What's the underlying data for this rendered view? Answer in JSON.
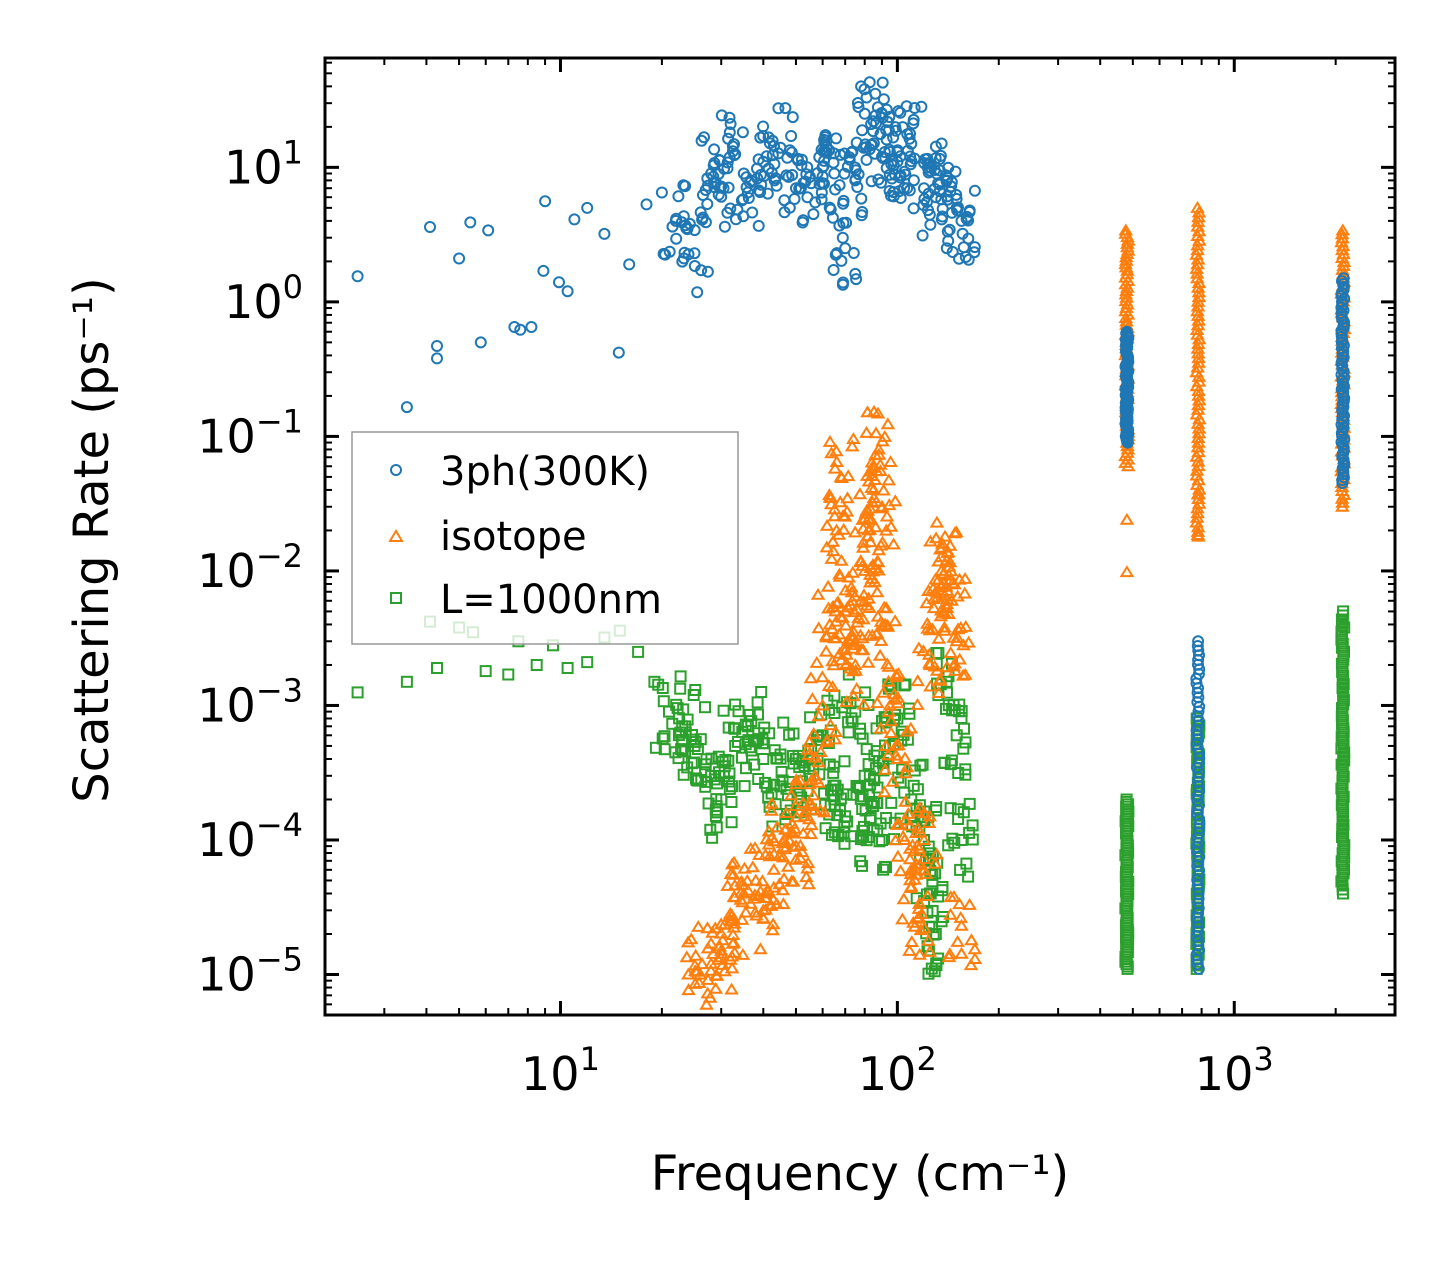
{
  "chart_data": {
    "type": "scatter",
    "xscale": "log",
    "yscale": "log",
    "xlabel": "Frequency (cm⁻¹)",
    "ylabel": "Scattering Rate (ps⁻¹)",
    "xlim": [
      2.0,
      3000
    ],
    "ylim": [
      5e-06,
      65
    ],
    "x_ticks": [
      {
        "base": "10",
        "exp": "1",
        "value": 10
      },
      {
        "base": "10",
        "exp": "2",
        "value": 100
      },
      {
        "base": "10",
        "exp": "3",
        "value": 1000
      }
    ],
    "y_ticks": [
      {
        "base": "10",
        "exp": "1",
        "value": 10
      },
      {
        "base": "10",
        "exp": "0",
        "value": 1
      },
      {
        "base": "10",
        "exp": "−1",
        "value": 0.1
      },
      {
        "base": "10",
        "exp": "−2",
        "value": 0.01
      },
      {
        "base": "10",
        "exp": "−3",
        "value": 0.001
      },
      {
        "base": "10",
        "exp": "−4",
        "value": 0.0001
      },
      {
        "base": "10",
        "exp": "−5",
        "value": 1e-05
      }
    ],
    "legend_position": "center-left",
    "series": [
      {
        "name": "3ph(300K)",
        "marker": "circle",
        "color": "#1f77b4",
        "x": [
          2.5,
          3.5,
          4.1,
          4.3,
          4.3,
          5.0,
          5.4,
          5.8,
          6.1,
          7.3,
          7.6,
          8.2,
          8.9,
          9.0,
          9.9,
          10.5,
          11.0,
          12.0,
          13.5,
          14.9,
          16.0,
          18.0,
          20.0,
          22.0,
          25.0,
          28.0,
          30.0,
          33.0,
          36.0,
          40.0,
          45.0,
          50.0,
          55.0,
          60.0,
          65.0,
          70.0,
          75.0,
          80.0,
          85.0,
          90.0,
          95.0,
          100.0,
          110.0,
          120.0,
          130.0,
          140.0,
          150.0,
          155.0
        ],
        "y": [
          1.55,
          0.165,
          3.6,
          0.38,
          0.47,
          2.1,
          3.9,
          0.5,
          3.4,
          0.65,
          0.62,
          0.65,
          1.7,
          5.6,
          1.4,
          1.2,
          4.1,
          5.0,
          3.2,
          0.42,
          1.9,
          5.3,
          6.5,
          4.0,
          2.3,
          9.0,
          7.2,
          12.5,
          6.5,
          11.0,
          14.0,
          7.0,
          8.5,
          10.0,
          9.0,
          2.5,
          8.0,
          25.0,
          22.0,
          12.0,
          13.0,
          11.0,
          15.0,
          7.0,
          6.0,
          8.0,
          5.0,
          4.0
        ],
        "bands": [
          {
            "x": [
              480,
              480
            ],
            "y": [
              0.09,
              0.6
            ]
          },
          {
            "x": [
              780,
              780
            ],
            "y": [
              1.1e-05,
              0.003
            ]
          },
          {
            "x": [
              2100,
              2100
            ],
            "y": [
              0.045,
              1.5
            ]
          }
        ]
      },
      {
        "name": "isotope",
        "marker": "triangle",
        "color": "#ff7f0e",
        "x": [
          26,
          28,
          30,
          32,
          35,
          38,
          40,
          43,
          46,
          50,
          53,
          57,
          60,
          63,
          66,
          68,
          70,
          72,
          75,
          78,
          80,
          82,
          85,
          88,
          90,
          92,
          95,
          100,
          105,
          110,
          115,
          120,
          125,
          130,
          135,
          140,
          145,
          150,
          155
        ],
        "y": [
          1e-05,
          1.2e-05,
          1.5e-05,
          2.5e-05,
          4e-05,
          5e-05,
          3e-05,
          6e-05,
          0.0001,
          9e-05,
          0.00015,
          0.0003,
          0.001,
          0.004,
          0.02,
          0.05,
          0.005,
          0.003,
          0.002,
          0.006,
          0.01,
          0.02,
          0.04,
          0.08,
          0.03,
          0.004,
          0.001,
          0.0004,
          0.0001,
          4.5e-05,
          2.6e-05,
          0.0001,
          0.002,
          0.007,
          0.01,
          0.012,
          0.006,
          0.003,
          2.3e-05
        ],
        "bands": [
          {
            "x": [
              480,
              480
            ],
            "y": [
              0.06,
              3.4
            ]
          },
          {
            "x": [
              780,
              780
            ],
            "y": [
              0.018,
              5.0
            ]
          },
          {
            "x": [
              2100,
              2100
            ],
            "y": [
              0.03,
              3.4
            ]
          }
        ],
        "outliers": [
          {
            "x": 480,
            "y": 0.0098
          },
          {
            "x": 480,
            "y": 0.024
          },
          {
            "x": 780,
            "y": 0.0185
          },
          {
            "x": 780,
            "y": 0.037
          }
        ]
      },
      {
        "name": "L=1000nm",
        "marker": "square",
        "color": "#2ca02c",
        "x": [
          2.5,
          3.5,
          4.1,
          4.3,
          5.0,
          5.5,
          6.0,
          7.0,
          7.5,
          8.5,
          9.5,
          10.5,
          12.0,
          13.5,
          15.0,
          17.0,
          19.0,
          21.0,
          23.0,
          25.0,
          28.0,
          30.0,
          33.0,
          36.0,
          40.0,
          45.0,
          50.0,
          55.0,
          60.0,
          65.0,
          70.0,
          75.0,
          80.0,
          85.0,
          90.0,
          95.0,
          100.0,
          110.0,
          120.0,
          125.0,
          130.0,
          140.0,
          150.0,
          155.0
        ],
        "y": [
          0.00125,
          0.0015,
          0.0042,
          0.0019,
          0.0038,
          0.0035,
          0.0018,
          0.0017,
          0.003,
          0.002,
          0.0028,
          0.0019,
          0.0021,
          0.0032,
          0.0036,
          0.0025,
          0.0015,
          0.0009,
          0.0007,
          0.0005,
          0.0003,
          0.0002,
          0.0005,
          0.0007,
          0.0004,
          0.00025,
          0.0004,
          0.0003,
          0.0006,
          0.0002,
          0.00015,
          0.0009,
          0.0003,
          0.00012,
          0.0001,
          0.0005,
          0.0008,
          0.0002,
          0.0001,
          4e-05,
          2e-05,
          0.0015,
          0.0006,
          0.0001
        ],
        "bands": [
          {
            "x": [
              480,
              480
            ],
            "y": [
              1.1e-05,
              0.0002
            ]
          },
          {
            "x": [
              780,
              780
            ],
            "y": [
              1.1e-05,
              0.0008
            ]
          },
          {
            "x": [
              2100,
              2100
            ],
            "y": [
              4e-05,
              0.005
            ]
          }
        ]
      }
    ]
  }
}
